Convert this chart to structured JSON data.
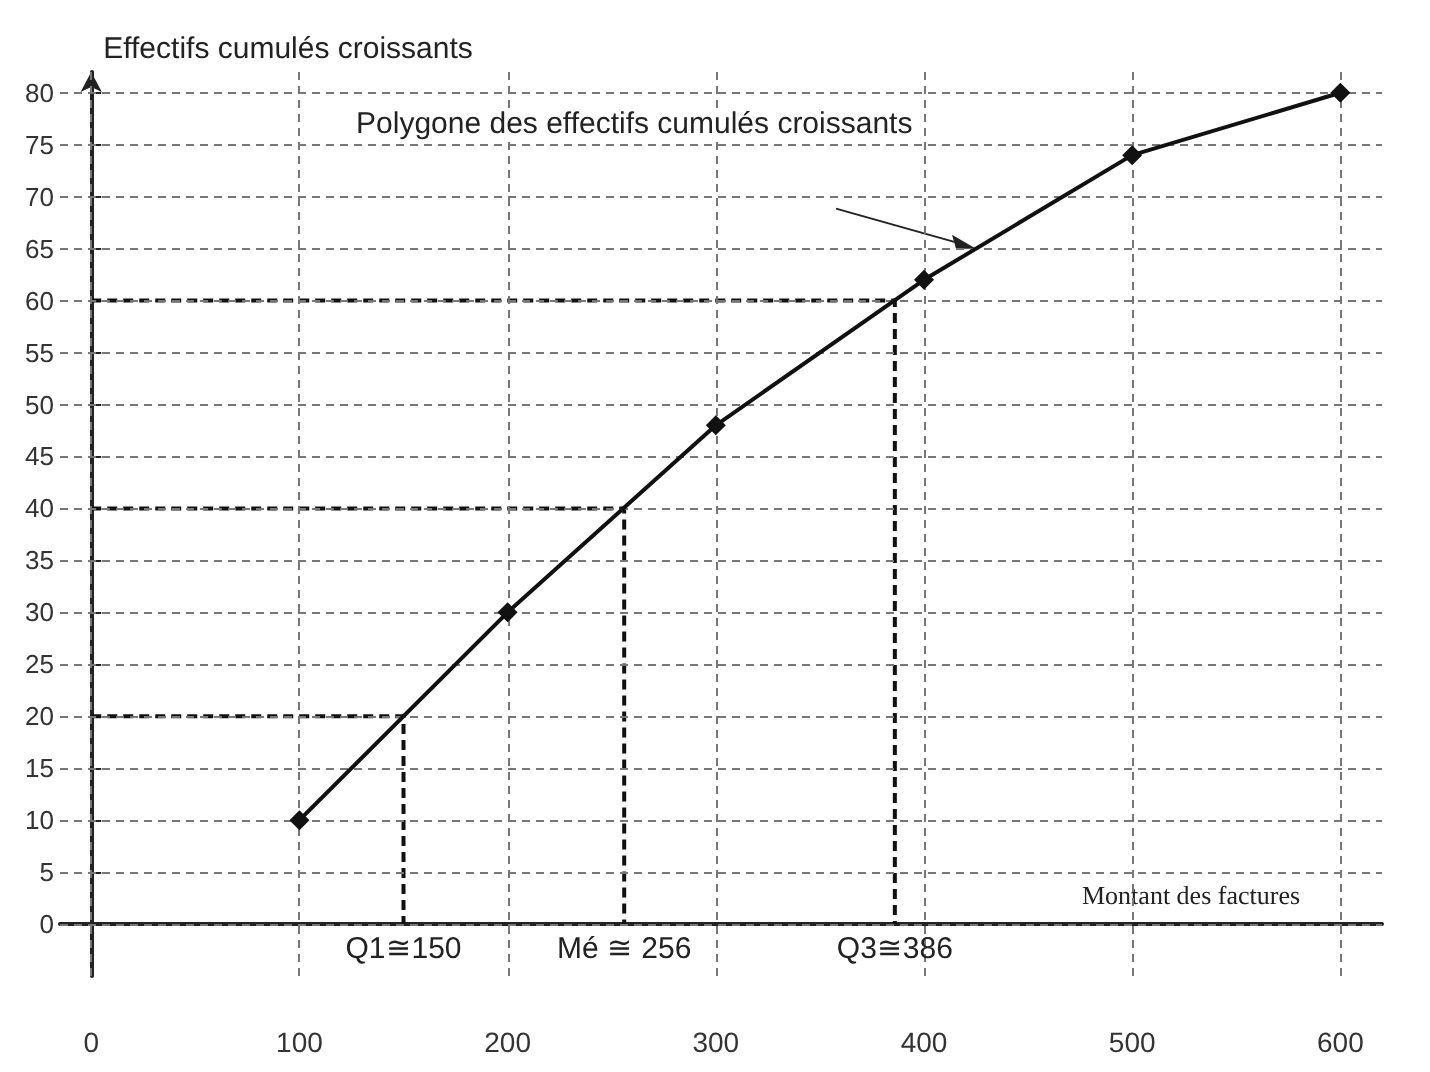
{
  "chart_data": {
    "type": "line",
    "xlabel": "Montant des factures",
    "ylabel": "Effectifs cumulés croissants",
    "x": [
      100,
      200,
      300,
      400,
      500,
      600
    ],
    "series": [
      {
        "color": "#111111",
        "values": [
          10,
          30,
          48,
          62,
          74,
          80
        ]
      },
      {
        "color": "#111111",
        "x": [
          0,
          150,
          150
        ],
        "values": [
          20,
          20,
          0
        ],
        "line_style": "dashed",
        "marker": "none"
      },
      {
        "color": "#111111",
        "x": [
          0,
          256,
          256
        ],
        "values": [
          40,
          40,
          0
        ],
        "line_style": "dashed",
        "marker": "none"
      },
      {
        "color": "#111111",
        "x": [
          0,
          386,
          386
        ],
        "values": [
          60,
          60,
          0
        ],
        "line_style": "dashed",
        "marker": "none"
      }
    ],
    "xlim": [
      -15,
      620
    ],
    "ylim": [
      -5,
      82
    ],
    "xticks": [
      0,
      100,
      200,
      300,
      400,
      500,
      600
    ],
    "yticks": [
      0,
      5,
      10,
      15,
      20,
      25,
      30,
      35,
      40,
      45,
      50,
      55,
      60,
      65,
      70,
      75,
      80
    ],
    "grid": true,
    "marker": "diamond",
    "line_style": "solid",
    "annotations": [
      {
        "text": "Q1≅150",
        "x": 150,
        "y": 0
      },
      {
        "text": "Mé ≅ 256",
        "x": 256,
        "y": 0
      },
      {
        "text": "Q3≅386",
        "x": 386,
        "y": 0
      },
      "Polygone des effectifs cumulés croissants"
    ]
  }
}
